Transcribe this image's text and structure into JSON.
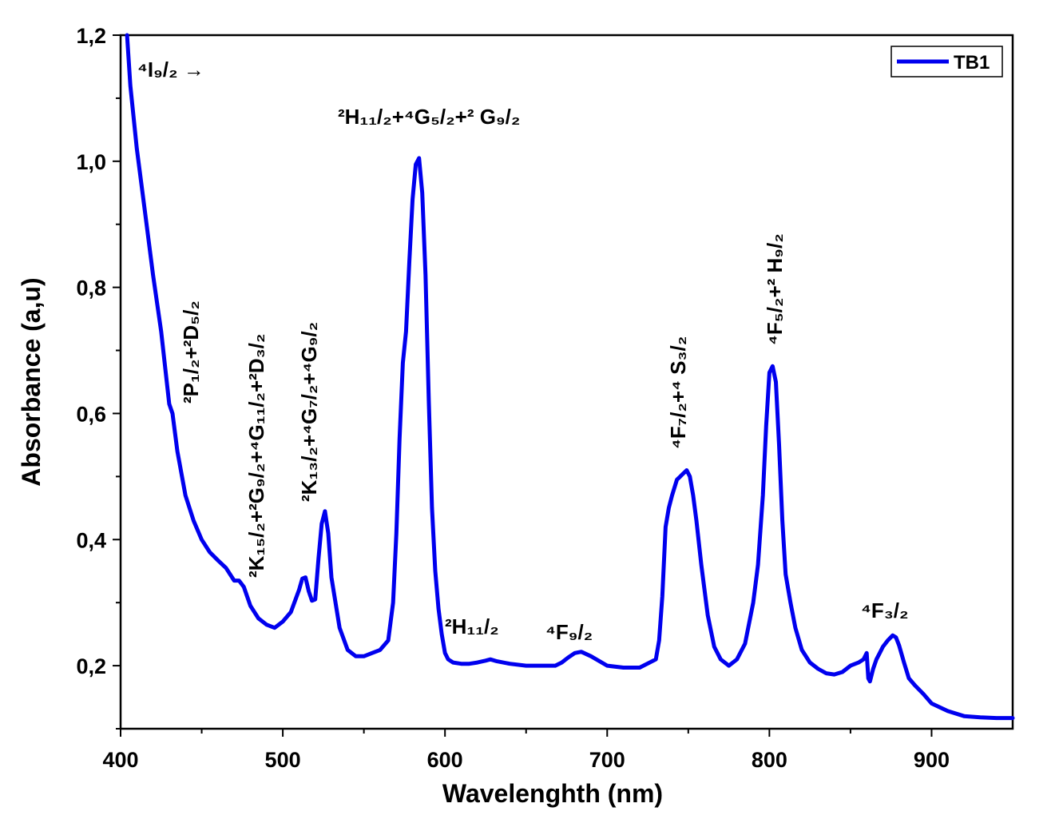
{
  "chart_data": {
    "type": "line",
    "xlabel": "Wavelenghth (nm)",
    "ylabel": "Absorbance (a,u)",
    "xlim": [
      400,
      950
    ],
    "ylim": [
      0.1,
      1.2
    ],
    "xticks": [
      400,
      500,
      600,
      700,
      800,
      900
    ],
    "xtick_labels": [
      "400",
      "500",
      "600",
      "700",
      "800",
      "900"
    ],
    "yticks": [
      0.2,
      0.4,
      0.6,
      0.8,
      1.0,
      1.2
    ],
    "ytick_labels": [
      "0,2",
      "0,4",
      "0,6",
      "0,8",
      "1,0",
      "1,2"
    ],
    "legend": {
      "position": "top-right",
      "label": "TB1"
    },
    "series": [
      {
        "name": "TB1",
        "color": "#0000ee",
        "x": [
          404,
          406,
          410,
          415,
          420,
          425,
          430,
          432,
          435,
          440,
          445,
          450,
          455,
          460,
          465,
          470,
          473,
          476,
          480,
          485,
          490,
          495,
          500,
          505,
          510,
          512,
          514,
          516,
          518,
          520,
          522,
          524,
          526,
          528,
          530,
          535,
          540,
          545,
          550,
          555,
          560,
          565,
          568,
          570,
          572,
          574,
          576,
          578,
          580,
          582,
          584,
          586,
          588,
          590,
          592,
          594,
          596,
          598,
          600,
          602,
          605,
          610,
          615,
          620,
          625,
          628,
          632,
          640,
          650,
          660,
          668,
          672,
          676,
          680,
          684,
          690,
          700,
          710,
          720,
          730,
          732,
          734,
          736,
          738,
          740,
          743,
          745,
          747,
          749,
          751,
          753,
          755,
          758,
          762,
          766,
          770,
          775,
          780,
          785,
          790,
          793,
          796,
          798,
          800,
          802,
          804,
          806,
          808,
          810,
          813,
          816,
          820,
          825,
          830,
          835,
          840,
          845,
          850,
          855,
          858,
          860,
          861,
          862,
          864,
          866,
          868,
          870,
          873,
          876,
          878,
          880,
          883,
          886,
          890,
          895,
          900,
          910,
          920,
          930,
          940,
          950
        ],
        "y": [
          1.2,
          1.12,
          1.02,
          0.92,
          0.82,
          0.73,
          0.615,
          0.6,
          0.54,
          0.47,
          0.43,
          0.4,
          0.38,
          0.367,
          0.355,
          0.335,
          0.335,
          0.325,
          0.295,
          0.275,
          0.265,
          0.26,
          0.27,
          0.285,
          0.32,
          0.338,
          0.34,
          0.318,
          0.303,
          0.305,
          0.37,
          0.425,
          0.445,
          0.41,
          0.34,
          0.26,
          0.225,
          0.215,
          0.215,
          0.22,
          0.225,
          0.24,
          0.3,
          0.41,
          0.56,
          0.68,
          0.73,
          0.84,
          0.94,
          0.995,
          1.005,
          0.95,
          0.82,
          0.62,
          0.45,
          0.35,
          0.29,
          0.25,
          0.22,
          0.21,
          0.205,
          0.203,
          0.203,
          0.205,
          0.208,
          0.21,
          0.207,
          0.203,
          0.2,
          0.2,
          0.2,
          0.205,
          0.213,
          0.22,
          0.222,
          0.215,
          0.2,
          0.197,
          0.197,
          0.21,
          0.24,
          0.31,
          0.42,
          0.45,
          0.47,
          0.495,
          0.5,
          0.505,
          0.51,
          0.5,
          0.47,
          0.43,
          0.36,
          0.28,
          0.23,
          0.21,
          0.2,
          0.21,
          0.235,
          0.3,
          0.36,
          0.47,
          0.58,
          0.665,
          0.675,
          0.65,
          0.55,
          0.43,
          0.345,
          0.3,
          0.26,
          0.225,
          0.205,
          0.195,
          0.188,
          0.186,
          0.19,
          0.2,
          0.205,
          0.21,
          0.22,
          0.18,
          0.175,
          0.195,
          0.21,
          0.22,
          0.23,
          0.24,
          0.248,
          0.245,
          0.232,
          0.205,
          0.18,
          0.168,
          0.155,
          0.14,
          0.128,
          0.12,
          0.118,
          0.117,
          0.117
        ]
      }
    ],
    "annotations": [
      {
        "text": "⁴I₉/₂ →",
        "target_nm": 415
      },
      {
        "text": "²P₁/₂+²D₅/₂",
        "target_nm": 432
      },
      {
        "text": "²K₁₅/₂+²G₉/₂+⁴G₁₁/₂+²D₃/₂",
        "target_nm": 475
      },
      {
        "text": "²K₁₃/₂+⁴G₇/₂+⁴G₉/₂",
        "target_nm": 526
      },
      {
        "text": "²H₁₁/₂+⁴G₅/₂+² G₉/₂",
        "target_nm": 584
      },
      {
        "text": "²H₁₁/₂",
        "target_nm": 628
      },
      {
        "text": "⁴F₉/₂",
        "target_nm": 682
      },
      {
        "text": "⁴F₇/₂+⁴ S₃/₂",
        "target_nm": 747
      },
      {
        "text": "⁴F₅/₂+² H₉/₂",
        "target_nm": 803
      },
      {
        "text": "⁴F₃/₂",
        "target_nm": 876
      }
    ]
  }
}
